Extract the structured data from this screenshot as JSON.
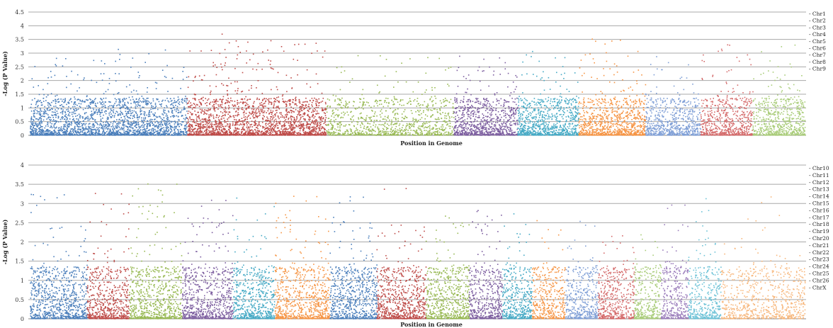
{
  "chart_data": [
    {
      "type": "scatter",
      "title": "",
      "xlabel": "Position in Genome",
      "ylabel": "-Log (P Value)",
      "ylim": [
        0,
        4.5
      ],
      "yticks": [
        "0",
        "0.5",
        "1",
        "1.5",
        "2",
        "2.5",
        "3",
        "3.5",
        "4",
        "4.5"
      ],
      "grid": true,
      "legend_position": "right",
      "series": [
        {
          "name": "Chr1",
          "color": "#4a7ebb",
          "width": 2.7,
          "density": 1.0,
          "peak": 3.4
        },
        {
          "name": "Chr2",
          "color": "#be4b48",
          "width": 2.4,
          "density": 1.1,
          "peak": 3.8
        },
        {
          "name": "Chr3",
          "color": "#98b954",
          "width": 2.2,
          "density": 0.55,
          "peak": 3.0
        },
        {
          "name": "Chr4",
          "color": "#7d5fa0",
          "width": 1.1,
          "density": 1.0,
          "peak": 3.0
        },
        {
          "name": "Chr5",
          "color": "#46aac5",
          "width": 1.05,
          "density": 1.0,
          "peak": 3.2
        },
        {
          "name": "Chr6",
          "color": "#f69545",
          "width": 1.15,
          "density": 1.0,
          "peak": 3.9
        },
        {
          "name": "Chr7",
          "color": "#7f9fd6",
          "width": 0.95,
          "density": 0.9,
          "peak": 3.0
        },
        {
          "name": "Chr8",
          "color": "#d46a6a",
          "width": 0.9,
          "density": 0.9,
          "peak": 3.3
        },
        {
          "name": "Chr9",
          "color": "#a9cc79",
          "width": 0.9,
          "density": 0.9,
          "peak": 3.3
        }
      ]
    },
    {
      "type": "scatter",
      "title": "",
      "xlabel": "Position in Genome",
      "ylabel": "-Log (P Value)",
      "ylim": [
        0,
        4
      ],
      "yticks": [
        "0",
        "0.5",
        "1",
        "1.5",
        "2",
        "2.5",
        "3",
        "3.5",
        "4"
      ],
      "grid": true,
      "legend_position": "right",
      "series": [
        {
          "name": "Chr10",
          "color": "#4a7ebb",
          "width": 0.95,
          "density": 1.0,
          "peak": 3.3
        },
        {
          "name": "Chr11",
          "color": "#be4b48",
          "width": 0.7,
          "density": 1.0,
          "peak": 3.6
        },
        {
          "name": "Chr12",
          "color": "#98b954",
          "width": 0.88,
          "density": 1.0,
          "peak": 3.7
        },
        {
          "name": "Chr13",
          "color": "#7d5fa0",
          "width": 0.85,
          "density": 1.0,
          "peak": 3.2
        },
        {
          "name": "Chr14",
          "color": "#46aac5",
          "width": 0.7,
          "density": 1.0,
          "peak": 3.2
        },
        {
          "name": "Chr15",
          "color": "#f69545",
          "width": 0.92,
          "density": 1.0,
          "peak": 3.2
        },
        {
          "name": "Chr16",
          "color": "#4a7ebb",
          "width": 0.78,
          "density": 1.0,
          "peak": 3.2
        },
        {
          "name": "Chr17",
          "color": "#be4b48",
          "width": 0.82,
          "density": 1.0,
          "peak": 3.4
        },
        {
          "name": "Chr18",
          "color": "#98b954",
          "width": 0.72,
          "density": 1.0,
          "peak": 2.9
        },
        {
          "name": "Chr19",
          "color": "#7d5fa0",
          "width": 0.55,
          "density": 1.0,
          "peak": 3.0
        },
        {
          "name": "Chr20",
          "color": "#46aac5",
          "width": 0.5,
          "density": 1.0,
          "peak": 3.0
        },
        {
          "name": "Chr21",
          "color": "#f69545",
          "width": 0.55,
          "density": 0.8,
          "peak": 2.7
        },
        {
          "name": "Chr22",
          "color": "#7f9fd6",
          "width": 0.55,
          "density": 0.9,
          "peak": 2.6
        },
        {
          "name": "Chr23",
          "color": "#d46a6a",
          "width": 0.6,
          "density": 0.9,
          "peak": 2.5
        },
        {
          "name": "Chr24",
          "color": "#a9cc79",
          "width": 0.45,
          "density": 0.9,
          "peak": 2.3
        },
        {
          "name": "Chr25",
          "color": "#9b7dbb",
          "width": 0.45,
          "density": 0.9,
          "peak": 3.0
        },
        {
          "name": "Chr26",
          "color": "#6fc3d7",
          "width": 0.55,
          "density": 0.9,
          "peak": 3.5
        },
        {
          "name": "ChrX",
          "color": "#f7b77c",
          "width": 1.4,
          "density": 0.6,
          "peak": 3.2
        }
      ]
    }
  ]
}
